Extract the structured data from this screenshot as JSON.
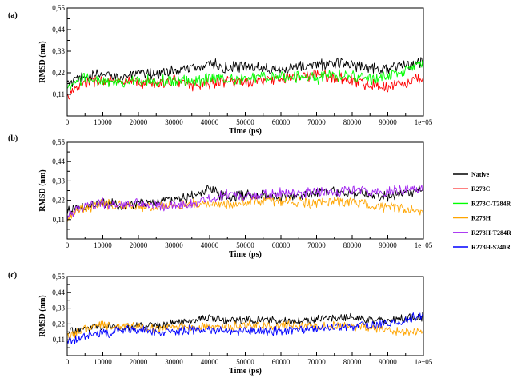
{
  "legend": [
    {
      "name": "Native",
      "color": "#000000"
    },
    {
      "name": "R273C",
      "color": "#ff0000"
    },
    {
      "name": "R273C-T284R",
      "color": "#00ff00"
    },
    {
      "name": "R273H",
      "color": "#ffa500"
    },
    {
      "name": "R273H-T284R",
      "color": "#a020f0"
    },
    {
      "name": "R273H-S240R",
      "color": "#0000ff"
    }
  ],
  "chart_data": [
    {
      "type": "line",
      "panel_label": "(a)",
      "xlabel": "Time (ps)",
      "ylabel": "RMSD (nm)",
      "xlim": [
        0,
        100000
      ],
      "ylim": [
        0,
        0.55
      ],
      "xticks": [
        0,
        10000,
        20000,
        30000,
        40000,
        50000,
        60000,
        70000,
        80000,
        90000,
        100000
      ],
      "xtick_labels": [
        "0",
        "10000",
        "20000",
        "30000",
        "40000",
        "50000",
        "60000",
        "70000",
        "80000",
        "90000",
        "1e+05"
      ],
      "yticks": [
        0.11,
        0.22,
        0.33,
        0.44,
        0.55
      ],
      "ytick_labels": [
        "0,11",
        "0,22",
        "0,33",
        "0,44",
        "0,55"
      ],
      "x": [
        0,
        5000,
        10000,
        15000,
        20000,
        25000,
        30000,
        35000,
        40000,
        45000,
        50000,
        55000,
        60000,
        65000,
        70000,
        75000,
        80000,
        85000,
        90000,
        95000,
        100000
      ],
      "series": [
        {
          "name": "Native",
          "color": "#000000",
          "values": [
            0.16,
            0.2,
            0.21,
            0.2,
            0.21,
            0.22,
            0.23,
            0.24,
            0.27,
            0.24,
            0.25,
            0.25,
            0.24,
            0.25,
            0.26,
            0.27,
            0.26,
            0.25,
            0.24,
            0.26,
            0.27
          ]
        },
        {
          "name": "R273C",
          "color": "#ff0000",
          "values": [
            0.1,
            0.17,
            0.18,
            0.17,
            0.17,
            0.17,
            0.18,
            0.16,
            0.17,
            0.18,
            0.17,
            0.18,
            0.19,
            0.2,
            0.21,
            0.2,
            0.18,
            0.16,
            0.15,
            0.17,
            0.2
          ]
        },
        {
          "name": "R273C-T284R",
          "color": "#00ff00",
          "values": [
            0.13,
            0.2,
            0.17,
            0.17,
            0.18,
            0.18,
            0.18,
            0.18,
            0.19,
            0.19,
            0.19,
            0.2,
            0.2,
            0.2,
            0.19,
            0.21,
            0.2,
            0.19,
            0.2,
            0.23,
            0.27
          ]
        }
      ]
    },
    {
      "type": "line",
      "panel_label": "(b)",
      "xlabel": "Time (ps)",
      "ylabel": "RMSD (nm)",
      "xlim": [
        0,
        100000
      ],
      "ylim": [
        0,
        0.55
      ],
      "xticks": [
        0,
        10000,
        20000,
        30000,
        40000,
        50000,
        60000,
        70000,
        80000,
        90000,
        100000
      ],
      "xtick_labels": [
        "0",
        "10000",
        "20000",
        "30000",
        "40000",
        "50000",
        "60000",
        "70000",
        "80000",
        "90000",
        "1e+05"
      ],
      "yticks": [
        0.11,
        0.22,
        0.33,
        0.44,
        0.55
      ],
      "ytick_labels": [
        "0,11",
        "0,22",
        "0,33",
        "0,44",
        "0,55"
      ],
      "x": [
        0,
        5000,
        10000,
        15000,
        20000,
        25000,
        30000,
        35000,
        40000,
        45000,
        50000,
        55000,
        60000,
        65000,
        70000,
        75000,
        80000,
        85000,
        90000,
        95000,
        100000
      ],
      "series": [
        {
          "name": "Native",
          "color": "#000000",
          "values": [
            0.16,
            0.18,
            0.21,
            0.19,
            0.2,
            0.21,
            0.23,
            0.24,
            0.28,
            0.24,
            0.25,
            0.25,
            0.24,
            0.25,
            0.26,
            0.28,
            0.26,
            0.25,
            0.24,
            0.26,
            0.28
          ]
        },
        {
          "name": "R273H",
          "color": "#ffa500",
          "values": [
            0.12,
            0.18,
            0.2,
            0.19,
            0.19,
            0.18,
            0.19,
            0.2,
            0.2,
            0.2,
            0.21,
            0.22,
            0.21,
            0.21,
            0.2,
            0.21,
            0.21,
            0.19,
            0.18,
            0.17,
            0.16
          ]
        },
        {
          "name": "R273H-T284R",
          "color": "#a020f0",
          "values": [
            0.13,
            0.19,
            0.2,
            0.19,
            0.2,
            0.19,
            0.19,
            0.2,
            0.23,
            0.25,
            0.25,
            0.25,
            0.26,
            0.26,
            0.27,
            0.27,
            0.28,
            0.27,
            0.27,
            0.28,
            0.28
          ]
        }
      ]
    },
    {
      "type": "line",
      "panel_label": "(c)",
      "xlabel": "Time (ps)",
      "ylabel": "RMSD (nm)",
      "xlim": [
        0,
        100000
      ],
      "ylim": [
        0,
        0.55
      ],
      "xticks": [
        0,
        10000,
        20000,
        30000,
        40000,
        50000,
        60000,
        70000,
        80000,
        90000,
        100000
      ],
      "xtick_labels": [
        "0",
        "10000",
        "20000",
        "30000",
        "40000",
        "50000",
        "60000",
        "70000",
        "80000",
        "90000",
        "1e+05"
      ],
      "yticks": [
        0.11,
        0.22,
        0.33,
        0.44,
        0.55
      ],
      "ytick_labels": [
        "0,11",
        "0,22",
        "0,33",
        "0,44",
        "0,55"
      ],
      "x": [
        0,
        5000,
        10000,
        15000,
        20000,
        25000,
        30000,
        35000,
        40000,
        45000,
        50000,
        55000,
        60000,
        65000,
        70000,
        75000,
        80000,
        85000,
        90000,
        95000,
        100000
      ],
      "series": [
        {
          "name": "Native",
          "color": "#000000",
          "values": [
            0.16,
            0.19,
            0.21,
            0.19,
            0.2,
            0.21,
            0.23,
            0.24,
            0.27,
            0.24,
            0.25,
            0.24,
            0.24,
            0.24,
            0.25,
            0.26,
            0.26,
            0.25,
            0.24,
            0.26,
            0.27
          ]
        },
        {
          "name": "R273H",
          "color": "#ffa500",
          "values": [
            0.13,
            0.19,
            0.21,
            0.2,
            0.2,
            0.19,
            0.2,
            0.2,
            0.2,
            0.2,
            0.21,
            0.21,
            0.21,
            0.21,
            0.2,
            0.21,
            0.21,
            0.19,
            0.18,
            0.17,
            0.16
          ]
        },
        {
          "name": "R273H-S240R",
          "color": "#0000ff",
          "values": [
            0.1,
            0.13,
            0.15,
            0.17,
            0.18,
            0.17,
            0.17,
            0.18,
            0.18,
            0.18,
            0.17,
            0.17,
            0.17,
            0.18,
            0.19,
            0.2,
            0.2,
            0.21,
            0.22,
            0.25,
            0.28
          ]
        }
      ]
    }
  ]
}
